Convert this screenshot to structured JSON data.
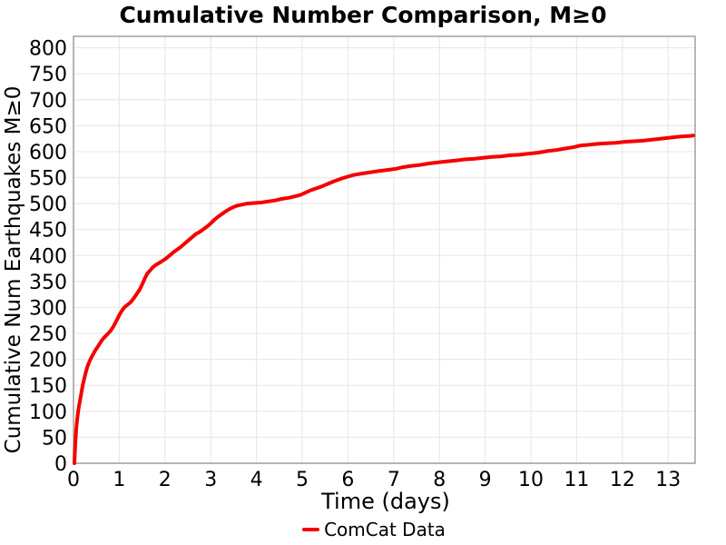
{
  "chart_data": {
    "type": "line",
    "title": "Cumulative Number Comparison, M≥0",
    "xlabel": "Time (days)",
    "ylabel": "Cumulative Num Earthquakes M≥0",
    "legend": [
      "ComCat Data"
    ],
    "legend_position": "bottom-center",
    "grid": true,
    "xlim": [
      0,
      13.59
    ],
    "ylim": [
      0,
      822
    ],
    "x_ticks": [
      0,
      1,
      2,
      3,
      4,
      5,
      6,
      7,
      8,
      9,
      10,
      11,
      12,
      13
    ],
    "y_ticks": [
      0,
      50,
      100,
      150,
      200,
      250,
      300,
      350,
      400,
      450,
      500,
      550,
      600,
      650,
      700,
      750,
      800
    ],
    "series": [
      {
        "name": "ComCat Data",
        "color": "#f40000",
        "points": [
          [
            0.02,
            0
          ],
          [
            0.03,
            20
          ],
          [
            0.04,
            38
          ],
          [
            0.05,
            52
          ],
          [
            0.06,
            66
          ],
          [
            0.08,
            84
          ],
          [
            0.1,
            98
          ],
          [
            0.12,
            110
          ],
          [
            0.14,
            120
          ],
          [
            0.17,
            135
          ],
          [
            0.2,
            150
          ],
          [
            0.23,
            161
          ],
          [
            0.26,
            172
          ],
          [
            0.3,
            185
          ],
          [
            0.34,
            194
          ],
          [
            0.38,
            202
          ],
          [
            0.43,
            210
          ],
          [
            0.48,
            218
          ],
          [
            0.52,
            223
          ],
          [
            0.57,
            230
          ],
          [
            0.63,
            238
          ],
          [
            0.69,
            244
          ],
          [
            0.75,
            249
          ],
          [
            0.81,
            255
          ],
          [
            0.87,
            263
          ],
          [
            0.93,
            273
          ],
          [
            1.0,
            285
          ],
          [
            1.06,
            294
          ],
          [
            1.12,
            301
          ],
          [
            1.18,
            305
          ],
          [
            1.25,
            310
          ],
          [
            1.32,
            318
          ],
          [
            1.39,
            327
          ],
          [
            1.45,
            335
          ],
          [
            1.51,
            346
          ],
          [
            1.56,
            356
          ],
          [
            1.61,
            365
          ],
          [
            1.67,
            371
          ],
          [
            1.73,
            377
          ],
          [
            1.8,
            382
          ],
          [
            1.88,
            386
          ],
          [
            1.95,
            390
          ],
          [
            2.02,
            394
          ],
          [
            2.1,
            400
          ],
          [
            2.18,
            406
          ],
          [
            2.26,
            411
          ],
          [
            2.34,
            416
          ],
          [
            2.43,
            423
          ],
          [
            2.51,
            429
          ],
          [
            2.59,
            435
          ],
          [
            2.67,
            441
          ],
          [
            2.75,
            445
          ],
          [
            2.83,
            450
          ],
          [
            2.91,
            455
          ],
          [
            2.99,
            461
          ],
          [
            3.07,
            468
          ],
          [
            3.15,
            474
          ],
          [
            3.23,
            479
          ],
          [
            3.31,
            484
          ],
          [
            3.4,
            489
          ],
          [
            3.49,
            493
          ],
          [
            3.58,
            496
          ],
          [
            3.68,
            498
          ],
          [
            3.8,
            500
          ],
          [
            3.95,
            501
          ],
          [
            4.1,
            502
          ],
          [
            4.25,
            504
          ],
          [
            4.4,
            506
          ],
          [
            4.55,
            509
          ],
          [
            4.7,
            511
          ],
          [
            4.85,
            514
          ],
          [
            4.97,
            517
          ],
          [
            5.07,
            521
          ],
          [
            5.17,
            525
          ],
          [
            5.3,
            529
          ],
          [
            5.43,
            533
          ],
          [
            5.56,
            538
          ],
          [
            5.7,
            543
          ],
          [
            5.85,
            548
          ],
          [
            6.0,
            552
          ],
          [
            6.12,
            555
          ],
          [
            6.25,
            557
          ],
          [
            6.4,
            559
          ],
          [
            6.55,
            561
          ],
          [
            6.7,
            563
          ],
          [
            6.9,
            565
          ],
          [
            7.05,
            567
          ],
          [
            7.2,
            570
          ],
          [
            7.35,
            572
          ],
          [
            7.55,
            574
          ],
          [
            7.75,
            577
          ],
          [
            7.95,
            579
          ],
          [
            8.15,
            581
          ],
          [
            8.35,
            583
          ],
          [
            8.55,
            585
          ],
          [
            8.75,
            586
          ],
          [
            8.95,
            588
          ],
          [
            9.15,
            590
          ],
          [
            9.35,
            591
          ],
          [
            9.55,
            593
          ],
          [
            9.75,
            594
          ],
          [
            9.95,
            596
          ],
          [
            10.15,
            598
          ],
          [
            10.35,
            601
          ],
          [
            10.55,
            603
          ],
          [
            10.75,
            606
          ],
          [
            10.95,
            609
          ],
          [
            11.1,
            612
          ],
          [
            11.25,
            613
          ],
          [
            11.45,
            615
          ],
          [
            11.65,
            616
          ],
          [
            11.85,
            617
          ],
          [
            12.05,
            619
          ],
          [
            12.25,
            620
          ],
          [
            12.45,
            621
          ],
          [
            12.65,
            623
          ],
          [
            12.85,
            625
          ],
          [
            13.05,
            627
          ],
          [
            13.25,
            629
          ],
          [
            13.45,
            630
          ],
          [
            13.55,
            631
          ]
        ]
      }
    ]
  },
  "colors": {
    "background": "#ffffff",
    "grid": "#e9e9e9",
    "spine": "#999999",
    "text": "#000000",
    "series_red": "#f40000"
  }
}
